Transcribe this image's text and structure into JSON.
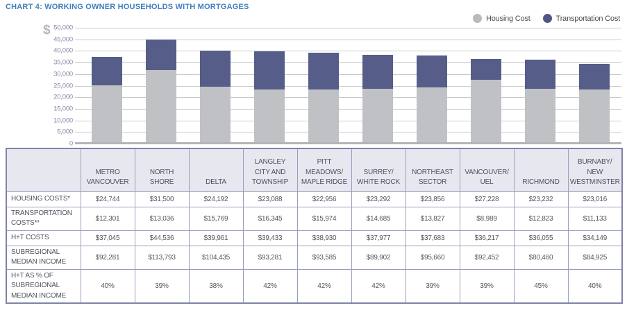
{
  "chart": {
    "title": "CHART 4:  WORKING OWNER HOUSEHOLDS WITH MORTGAGES",
    "currency_symbol": "$"
  },
  "chart_data": {
    "type": "bar",
    "stacked": true,
    "categories": [
      "METRO VANCOUVER",
      "NORTH SHORE",
      "DELTA",
      "LANGLEY CITY AND TOWNSHIP",
      "PITT MEADOWS/MAPLE RIDGE",
      "SURREY/WHITE ROCK",
      "NORTHEAST SECTOR",
      "VANCOUVER/UEL",
      "RICHMOND",
      "BURNABY/NEW WESTMINSTER"
    ],
    "series": [
      {
        "name": "Housing Cost",
        "color": "#c0c1c5",
        "swatch_color": "#b9babd",
        "values": [
          24744,
          31500,
          24192,
          23088,
          22956,
          23292,
          23856,
          27228,
          23232,
          23016
        ]
      },
      {
        "name": "Transportation Cost",
        "color": "#555d88",
        "swatch_color": "#505786",
        "values": [
          12301,
          13036,
          15769,
          16345,
          15974,
          14685,
          13827,
          8989,
          12823,
          11133
        ]
      }
    ],
    "ylim": [
      0,
      50000
    ],
    "ytick_step": 5000,
    "yticks": [
      "50,000",
      "45,000",
      "40,000",
      "35,000",
      "30,000",
      "25,000",
      "20,000",
      "15,000",
      "10,000",
      "5,000",
      "0"
    ],
    "grid": true,
    "legend_position": "top-right"
  },
  "table": {
    "columns": [
      "METRO\nVANCOUVER",
      "NORTH\nSHORE",
      "DELTA",
      "LANGLEY\nCITY AND\nTOWNSHIP",
      "PITT\nMEADOWS/\nMAPLE RIDGE",
      "SURREY/\nWHITE ROCK",
      "NORTHEAST\nSECTOR",
      "VANCOUVER/\nUEL",
      "RICHMOND",
      "BURNABY/\nNEW\nWESTMINSTER"
    ],
    "rows": [
      {
        "label": "HOUSING COSTS*",
        "values": [
          "$24,744",
          "$31,500",
          "$24,192",
          "$23,088",
          "$22,956",
          "$23,292",
          "$23,856",
          "$27,228",
          "$23,232",
          "$23,016"
        ]
      },
      {
        "label": "TRANSPORTATION\nCOSTS**",
        "values": [
          "$12,301",
          "$13,036",
          "$15,769",
          "$16,345",
          "$15,974",
          "$14,685",
          "$13,827",
          "$8,989",
          "$12,823",
          "$11,133"
        ]
      },
      {
        "label": "H+T COSTS",
        "values": [
          "$37,045",
          "$44,536",
          "$39,961",
          "$39,433",
          "$38,930",
          "$37,977",
          "$37,683",
          "$36,217",
          "$36,055",
          "$34,149"
        ]
      },
      {
        "label": "SUBREGIONAL\nMEDIAN INCOME",
        "values": [
          "$92,281",
          "$113,793",
          "$104,435",
          "$93,281",
          "$93,585",
          "$89,902",
          "$95,660",
          "$92,452",
          "$80,460",
          "$84,925"
        ]
      },
      {
        "label": "H+T AS % OF\nSUBREGIONAL\nMEDIAN INCOME",
        "values": [
          "40%",
          "39%",
          "38%",
          "42%",
          "42%",
          "42%",
          "39%",
          "39%",
          "45%",
          "40%"
        ]
      }
    ]
  }
}
